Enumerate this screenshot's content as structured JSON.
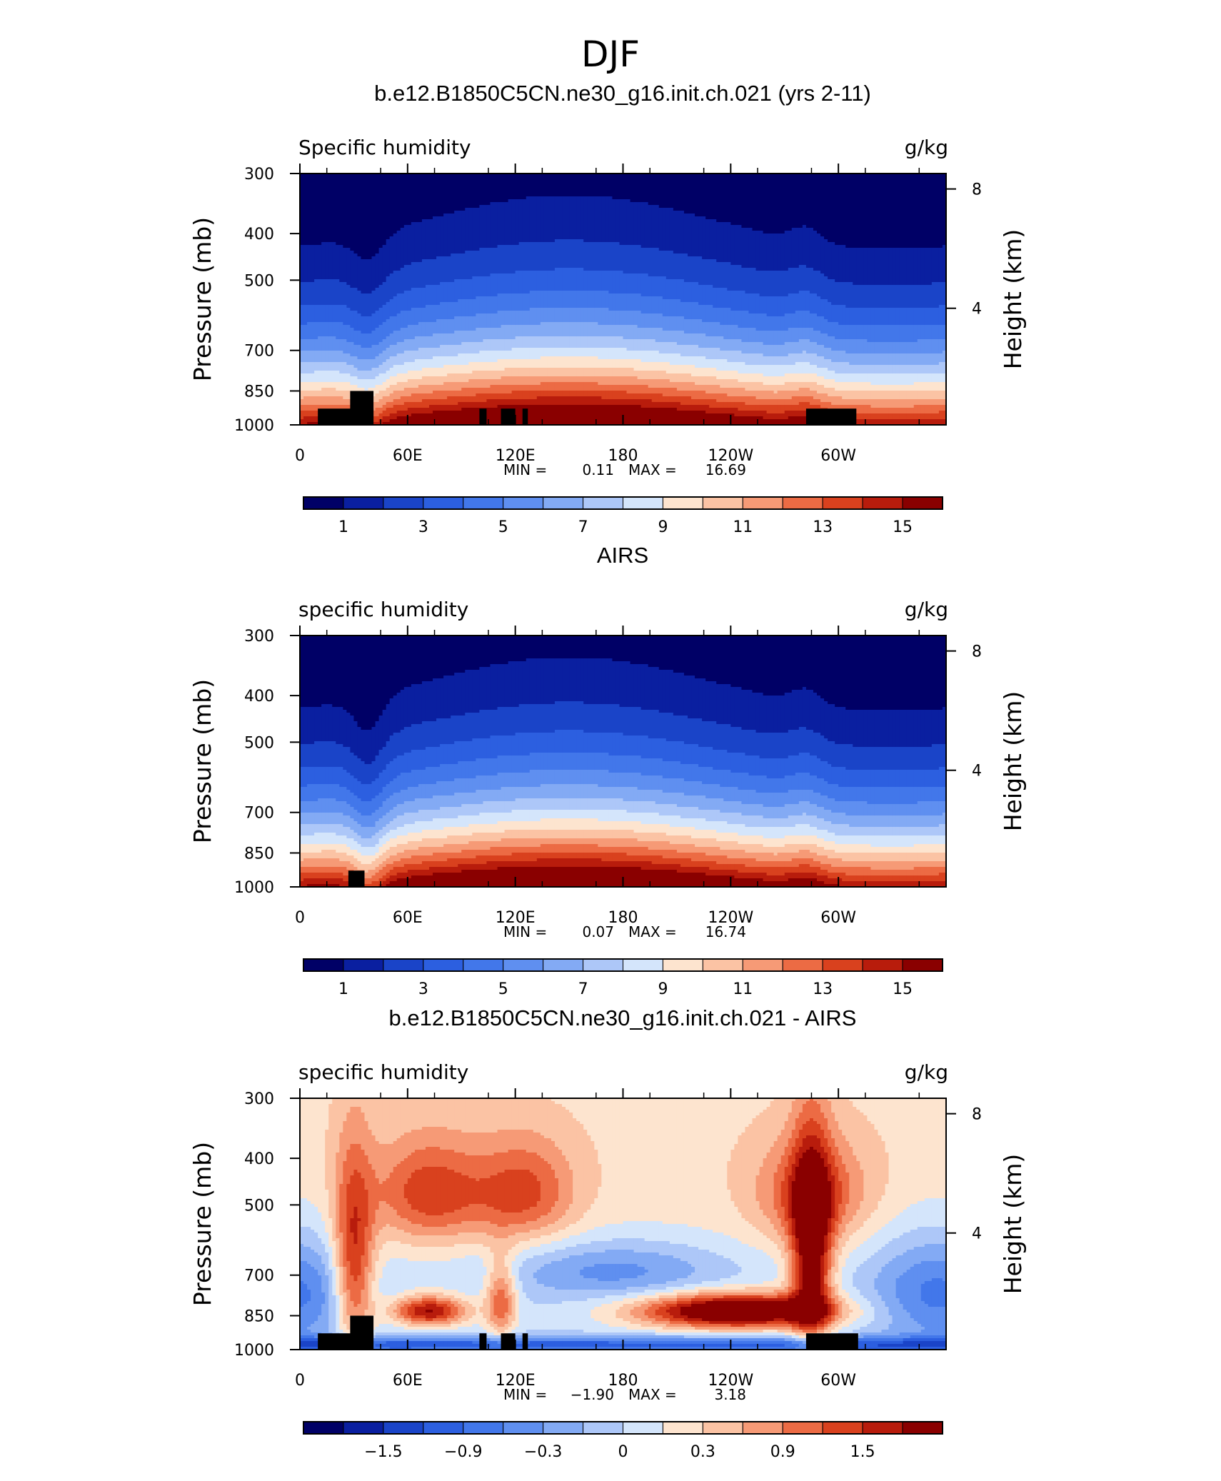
{
  "figure": {
    "title": "DJF"
  },
  "chart_data": [
    {
      "type": "heatmap",
      "title": "b.e12.B1850C5CN.ne30_g16.init.ch.021 (yrs 2-11)",
      "left_label": "Specific humidity",
      "right_label": "g/kg",
      "ylabel": "Pressure (mb)",
      "ylabel_right": "Height (km)",
      "x_ticks": [
        "0",
        "60E",
        "120E",
        "180",
        "120W",
        "60W"
      ],
      "y_ticks": [
        "300",
        "400",
        "500",
        "700",
        "850",
        "1000"
      ],
      "y_right_ticks": [
        "8",
        "4"
      ],
      "stats": {
        "min_label": "MIN =",
        "min": "0.11",
        "max_label": "MAX =",
        "max": "16.69"
      },
      "colorbar_labels": [
        "1",
        "3",
        "5",
        "7",
        "9",
        "11",
        "13",
        "15"
      ],
      "scale": "humidity",
      "x_range": [
        0,
        360
      ],
      "y_range_mb": [
        300,
        1000
      ],
      "color_range": [
        0,
        16
      ],
      "levels": 16,
      "terrain_boxes_lon": [
        [
          10,
          41,
          925
        ],
        [
          28,
          41,
          850
        ],
        [
          100,
          104,
          925
        ],
        [
          112,
          120,
          925
        ],
        [
          124,
          127,
          925
        ],
        [
          282,
          310,
          925
        ]
      ]
    },
    {
      "type": "heatmap",
      "title": "AIRS",
      "left_label": "specific humidity",
      "right_label": "g/kg",
      "ylabel": "Pressure (mb)",
      "ylabel_right": "Height (km)",
      "x_ticks": [
        "0",
        "60E",
        "120E",
        "180",
        "120W",
        "60W"
      ],
      "y_ticks": [
        "300",
        "400",
        "500",
        "700",
        "850",
        "1000"
      ],
      "y_right_ticks": [
        "8",
        "4"
      ],
      "stats": {
        "min_label": "MIN =",
        "min": "0.07",
        "max_label": "MAX =",
        "max": "16.74"
      },
      "colorbar_labels": [
        "1",
        "3",
        "5",
        "7",
        "9",
        "11",
        "13",
        "15"
      ],
      "scale": "humidity",
      "x_range": [
        0,
        360
      ],
      "y_range_mb": [
        300,
        1000
      ],
      "color_range": [
        0,
        16
      ],
      "levels": 16,
      "terrain_boxes_lon": [
        [
          27,
          36,
          925
        ]
      ]
    },
    {
      "type": "heatmap",
      "title": "b.e12.B1850C5CN.ne30_g16.init.ch.021 - AIRS",
      "left_label": "specific humidity",
      "right_label": "g/kg",
      "ylabel": "Pressure (mb)",
      "ylabel_right": "Height (km)",
      "x_ticks": [
        "0",
        "60E",
        "120E",
        "180",
        "120W",
        "60W"
      ],
      "y_ticks": [
        "300",
        "400",
        "500",
        "700",
        "850",
        "1000"
      ],
      "y_right_ticks": [
        "8",
        "4"
      ],
      "stats": {
        "min_label": "MIN =",
        "min": "−1.90",
        "max_label": "MAX =",
        "max": "3.18"
      },
      "colorbar_labels": [
        "−1.5",
        "−0.9",
        "−0.3",
        "0",
        "0.3",
        "0.9",
        "1.5"
      ],
      "scale": "difference",
      "x_range": [
        0,
        360
      ],
      "y_range_mb": [
        300,
        1000
      ],
      "color_range": [
        -2.1,
        2.1
      ],
      "levels": 16,
      "terrain_boxes_lon": [
        [
          10,
          41,
          925
        ],
        [
          28,
          41,
          850
        ],
        [
          100,
          104,
          925
        ],
        [
          112,
          120,
          925
        ],
        [
          124,
          127,
          925
        ],
        [
          282,
          311,
          925
        ]
      ]
    }
  ],
  "colors": {
    "palette": [
      "#000066",
      "#0a1fa0",
      "#1a44c8",
      "#2c5fe0",
      "#4277ea",
      "#5f8ff0",
      "#83aaf4",
      "#adc7f8",
      "#d4e5fb",
      "#fde4cf",
      "#fbc3a4",
      "#f69a76",
      "#ec6b44",
      "#d9411e",
      "#b81c0c",
      "#8a0000"
    ],
    "terrain": "#000000"
  }
}
